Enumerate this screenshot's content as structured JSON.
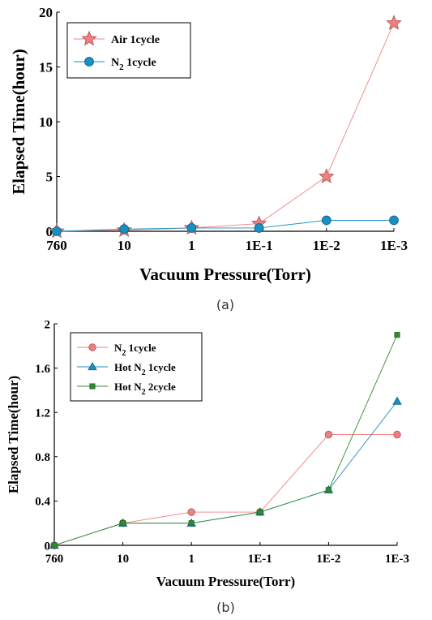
{
  "chart_data": [
    {
      "type": "line",
      "panel_label": "(a)",
      "xlabel": "Vacuum Pressure(Torr)",
      "ylabel": "Elapsed Time(hour)",
      "categories": [
        "760",
        "10",
        "1",
        "1E-1",
        "1E-2",
        "1E-3"
      ],
      "ylim": [
        0,
        20
      ],
      "yticks": [
        "0",
        "5",
        "10",
        "15",
        "20"
      ],
      "legend_position": "top-left",
      "grid": false,
      "series": [
        {
          "name": "Air 1cycle",
          "sub": "",
          "suffix": "",
          "color": "#f08080",
          "marker": "star",
          "values": [
            0,
            0.1,
            0.3,
            0.7,
            5,
            19
          ]
        },
        {
          "name": "N",
          "sub": "2",
          "suffix": " 1cycle",
          "color": "#1a8fc2",
          "marker": "circle",
          "values": [
            0,
            0.2,
            0.3,
            0.3,
            1,
            1
          ]
        }
      ]
    },
    {
      "type": "line",
      "panel_label": "(b)",
      "xlabel": "Vacuum Pressure(Torr)",
      "ylabel": "Elapsed Time(hour)",
      "categories": [
        "760",
        "10",
        "1",
        "1E-1",
        "1E-2",
        "1E-3"
      ],
      "ylim": [
        0,
        2
      ],
      "yticks": [
        "0",
        "0.4",
        "0.8",
        "1.2",
        "1.6",
        "2"
      ],
      "legend_position": "top-left",
      "grid": false,
      "series": [
        {
          "name": "N",
          "sub": "2",
          "suffix": " 1cycle",
          "color": "#f08080",
          "marker": "circle",
          "values": [
            0,
            0.2,
            0.3,
            0.3,
            1,
            1
          ]
        },
        {
          "name": "Hot N",
          "sub": "2",
          "suffix": " 1cycle",
          "color": "#1a8fc2",
          "marker": "triangle",
          "values": [
            0,
            0.2,
            0.2,
            0.3,
            0.5,
            1.3
          ]
        },
        {
          "name": "Hot N",
          "sub": "2",
          "suffix": " 2cycle",
          "color": "#2e8b2e",
          "marker": "square",
          "values": [
            0,
            0.2,
            0.2,
            0.3,
            0.5,
            1.9
          ]
        }
      ]
    }
  ]
}
